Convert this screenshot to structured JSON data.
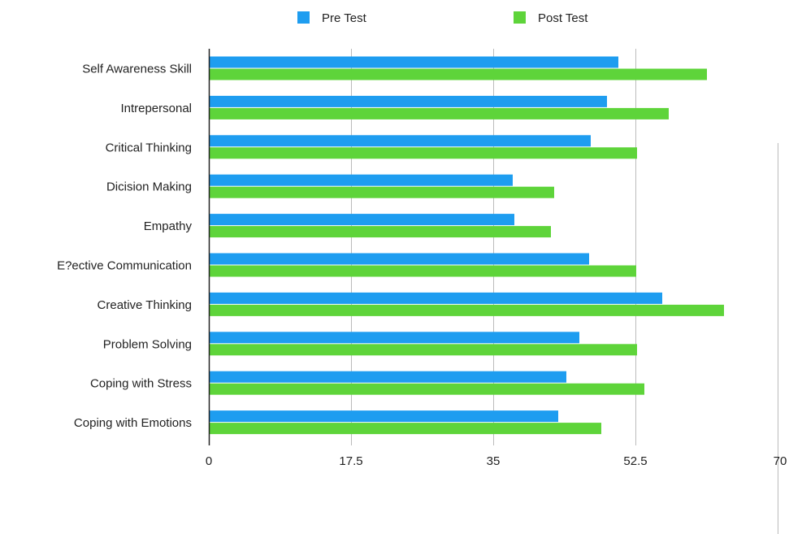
{
  "chart_data": {
    "type": "bar",
    "orientation": "horizontal",
    "title": "",
    "xlabel": "",
    "ylabel": "",
    "categories": [
      "Self Awareness Skill",
      "Intrepersonal",
      "Critical Thinking",
      "Dicision Making",
      "Empathy",
      "E?ective Communication",
      "Creative Thinking",
      "Problem Solving",
      "Coping with Stress",
      "Coping with Emotions"
    ],
    "series": [
      {
        "name": "Pre Test",
        "color": "#1e9df0",
        "values": [
          50.4,
          49.0,
          47.0,
          37.4,
          37.6,
          46.8,
          55.8,
          45.6,
          44.0,
          43.0
        ]
      },
      {
        "name": "Post Test",
        "color": "#5ed43a",
        "values": [
          61.3,
          56.6,
          52.7,
          42.5,
          42.1,
          52.6,
          63.4,
          52.7,
          53.6,
          48.3
        ]
      }
    ],
    "xlim": [
      0,
      70
    ],
    "xticks": [
      "0",
      "17.5",
      "35",
      "52.5",
      "70"
    ],
    "grid": true,
    "legend": "top"
  }
}
